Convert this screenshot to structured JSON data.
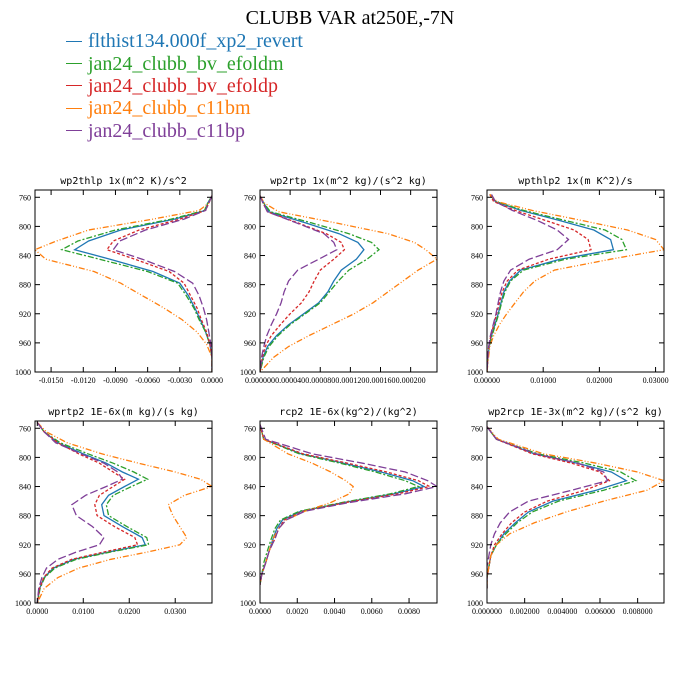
{
  "title": "CLUBB VAR at250E,-7N",
  "legend": [
    {
      "name": "flthist134.000f_xp2_revert",
      "color": "#1f77b4"
    },
    {
      "name": "jan24_clubb_bv_efoldm",
      "color": "#2ca02c"
    },
    {
      "name": "jan24_clubb_bv_efoldp",
      "color": "#d62728"
    },
    {
      "name": "jan24_clubb_c11bm",
      "color": "#ff7f0e"
    },
    {
      "name": "jan24_clubb_c11bp",
      "color": "#7f3f98"
    }
  ],
  "chart_data": [
    {
      "type": "line",
      "title": "wp2thlp  1x(m^2 K)/s^2",
      "xlim": [
        -0.0165,
        0.0
      ],
      "ylim": [
        1000,
        750
      ],
      "xticks": [
        -0.015,
        -0.012,
        -0.009,
        -0.006,
        -0.003,
        0.0
      ],
      "xticklabels": [
        "-0.0150",
        "-0.0120",
        "-0.0090",
        "-0.0060",
        "-0.0030",
        "0.0000"
      ],
      "yticks": [
        760,
        800,
        840,
        880,
        920,
        960,
        1000
      ],
      "y": [
        758,
        768,
        778,
        790,
        805,
        820,
        832,
        845,
        862,
        878,
        895,
        912,
        928,
        945,
        962,
        980,
        1000
      ],
      "series": [
        {
          "name": "flthist134.000f_xp2_revert",
          "values": [
            0.0,
            -0.0004,
            -0.0006,
            -0.0035,
            -0.0085,
            -0.0115,
            -0.0128,
            -0.0095,
            -0.0055,
            -0.003,
            -0.0022,
            -0.0016,
            -0.0011,
            -0.0006,
            -0.0002,
            0.0,
            0.0
          ]
        },
        {
          "name": "jan24_clubb_bv_efoldm",
          "values": [
            0.0,
            -0.0004,
            -0.0007,
            -0.0038,
            -0.009,
            -0.0125,
            -0.014,
            -0.0105,
            -0.006,
            -0.0032,
            -0.0024,
            -0.0017,
            -0.0012,
            -0.0006,
            -0.0002,
            0.0,
            0.0
          ]
        },
        {
          "name": "jan24_clubb_bv_efoldp",
          "values": [
            0.0,
            -0.0003,
            -0.0006,
            -0.003,
            -0.0068,
            -0.0092,
            -0.0098,
            -0.0072,
            -0.004,
            -0.0026,
            -0.002,
            -0.0014,
            -0.001,
            -0.0005,
            -0.0002,
            0.0,
            0.0
          ]
        },
        {
          "name": "jan24_clubb_c11bm",
          "values": [
            0.0,
            -0.0003,
            -0.0012,
            -0.0055,
            -0.0115,
            -0.0145,
            -0.0165,
            -0.0155,
            -0.011,
            -0.0085,
            -0.0065,
            -0.0045,
            -0.0028,
            -0.0014,
            -0.0005,
            0.0,
            0.0
          ]
        },
        {
          "name": "jan24_clubb_c11bp",
          "values": [
            0.0,
            -0.0003,
            -0.0006,
            -0.0026,
            -0.0062,
            -0.0086,
            -0.0092,
            -0.0065,
            -0.0035,
            -0.0018,
            -0.0012,
            -0.0008,
            -0.0005,
            -0.0003,
            -0.0001,
            0.0,
            0.0
          ]
        }
      ]
    },
    {
      "type": "line",
      "title": "wp2rtp  1x(m^2 kg)/(s^2 kg)",
      "xlim": [
        0.0,
        0.000235
      ],
      "ylim": [
        1000,
        750
      ],
      "xticks": [
        0.0,
        4e-05,
        8e-05,
        0.00012,
        0.00016,
        0.0002
      ],
      "xticklabels": [
        "0.000000",
        "0.000040",
        "0.000080",
        "0.000120",
        "0.000160",
        "0.000200"
      ],
      "yticks": [
        760,
        800,
        840,
        880,
        920,
        960,
        1000
      ],
      "y": [
        758,
        768,
        780,
        795,
        810,
        822,
        832,
        845,
        860,
        875,
        890,
        905,
        920,
        935,
        950,
        965,
        980,
        1000
      ],
      "series": [
        {
          "name": "flthist134.000f_xp2_revert",
          "values": [
            0.0,
            5e-06,
            1.2e-05,
            6e-05,
            0.000105,
            0.00013,
            0.000138,
            0.000128,
            0.000108,
            9.8e-05,
            9e-05,
            7.8e-05,
            5.8e-05,
            3.8e-05,
            2.2e-05,
            1e-05,
            4e-06,
            0.0
          ]
        },
        {
          "name": "jan24_clubb_bv_efoldm",
          "values": [
            0.0,
            5e-06,
            1.4e-05,
            6.8e-05,
            0.000118,
            0.000148,
            0.000158,
            0.000142,
            0.000118,
            0.000104,
            9.2e-05,
            8e-05,
            6e-05,
            4e-05,
            2.4e-05,
            1.2e-05,
            5e-06,
            0.0
          ]
        },
        {
          "name": "jan24_clubb_bv_efoldp",
          "values": [
            0.0,
            4e-06,
            1e-05,
            5e-05,
            8.8e-05,
            0.000108,
            0.000112,
            9.8e-05,
            8e-05,
            7.2e-05,
            6.5e-05,
            5.5e-05,
            4e-05,
            2.7e-05,
            1.5e-05,
            7e-06,
            3e-06,
            0.0
          ]
        },
        {
          "name": "jan24_clubb_c11bm",
          "values": [
            0.0,
            6e-06,
            2.5e-05,
            0.0001,
            0.00017,
            0.000205,
            0.00022,
            0.000235,
            0.00021,
            0.00019,
            0.00017,
            0.00015,
            0.000125,
            9.5e-05,
            6.5e-05,
            3.8e-05,
            1.8e-05,
            0.0
          ]
        },
        {
          "name": "jan24_clubb_c11bp",
          "values": [
            0.0,
            4e-06,
            1e-05,
            4.8e-05,
            8.5e-05,
            9.8e-05,
            0.000102,
            7.8e-05,
            5e-05,
            3.8e-05,
            3.2e-05,
            2.8e-05,
            2.2e-05,
            1.5e-05,
            9e-06,
            5e-06,
            2e-06,
            0.0
          ]
        }
      ]
    },
    {
      "type": "line",
      "title": "wpthlp2  1x(m K^2)/s",
      "xlim": [
        0.0,
        0.0315
      ],
      "ylim": [
        1000,
        750
      ],
      "xticks": [
        0.0,
        0.01,
        0.02,
        0.03
      ],
      "xticklabels": [
        "0.00000",
        "0.01000",
        "0.02000",
        "0.03000"
      ],
      "yticks": [
        760,
        800,
        840,
        880,
        920,
        960,
        1000
      ],
      "y": [
        756,
        766,
        778,
        792,
        805,
        818,
        832,
        845,
        860,
        875,
        890,
        905,
        920,
        935,
        950,
        965,
        985,
        1000
      ],
      "series": [
        {
          "name": "flthist134.000f_xp2_revert",
          "values": [
            0.0005,
            0.0015,
            0.006,
            0.013,
            0.019,
            0.022,
            0.0225,
            0.013,
            0.006,
            0.004,
            0.003,
            0.0025,
            0.002,
            0.0014,
            0.0008,
            0.0004,
            0.0001,
            0.0
          ]
        },
        {
          "name": "jan24_clubb_bv_efoldm",
          "values": [
            0.0005,
            0.0016,
            0.0065,
            0.014,
            0.021,
            0.024,
            0.0248,
            0.014,
            0.0065,
            0.0042,
            0.0032,
            0.0026,
            0.0021,
            0.0015,
            0.0009,
            0.0004,
            0.0001,
            0.0
          ]
        },
        {
          "name": "jan24_clubb_bv_efoldp",
          "values": [
            0.0005,
            0.0012,
            0.005,
            0.0105,
            0.0155,
            0.018,
            0.0185,
            0.011,
            0.0055,
            0.0036,
            0.0027,
            0.0022,
            0.0017,
            0.0012,
            0.0007,
            0.0003,
            0.0001,
            0.0
          ]
        },
        {
          "name": "jan24_clubb_c11bm",
          "values": [
            0.0005,
            0.0018,
            0.008,
            0.017,
            0.025,
            0.03,
            0.0315,
            0.022,
            0.012,
            0.0085,
            0.0065,
            0.005,
            0.0035,
            0.0022,
            0.0012,
            0.0005,
            0.0002,
            0.0
          ]
        },
        {
          "name": "jan24_clubb_c11bp",
          "values": [
            0.0008,
            0.0015,
            0.0045,
            0.009,
            0.0125,
            0.0145,
            0.0125,
            0.0075,
            0.0042,
            0.003,
            0.0024,
            0.002,
            0.0016,
            0.0011,
            0.0006,
            0.0003,
            0.0001,
            0.0
          ]
        }
      ]
    },
    {
      "type": "line",
      "title": "wprtp2  1E-6x(m kg)/(s kg)",
      "xlim": [
        -0.0005,
        0.038
      ],
      "ylim": [
        1000,
        750
      ],
      "xticks": [
        0.0,
        0.01,
        0.02,
        0.03
      ],
      "xticklabels": [
        "0.0000",
        "0.0100",
        "0.0200",
        "0.0300"
      ],
      "yticks": [
        760,
        800,
        840,
        880,
        920,
        960,
        1000
      ],
      "y": [
        752,
        765,
        780,
        795,
        808,
        820,
        830,
        840,
        852,
        865,
        880,
        895,
        910,
        920,
        930,
        940,
        952,
        965,
        980,
        1000
      ],
      "series": [
        {
          "name": "flthist134.000f_xp2_revert",
          "values": [
            0.0,
            0.0015,
            0.0045,
            0.01,
            0.015,
            0.0185,
            0.022,
            0.019,
            0.0155,
            0.014,
            0.0145,
            0.0185,
            0.0228,
            0.0235,
            0.0155,
            0.008,
            0.0035,
            0.0015,
            0.0005,
            0.0
          ]
        },
        {
          "name": "jan24_clubb_bv_efoldm",
          "values": [
            0.0,
            0.0015,
            0.005,
            0.011,
            0.0165,
            0.021,
            0.024,
            0.0205,
            0.0165,
            0.015,
            0.0155,
            0.0195,
            0.0238,
            0.0242,
            0.016,
            0.0085,
            0.0038,
            0.0016,
            0.0006,
            0.0
          ]
        },
        {
          "name": "jan24_clubb_bv_efoldp",
          "values": [
            0.0,
            0.0015,
            0.0045,
            0.009,
            0.0135,
            0.0165,
            0.019,
            0.0165,
            0.0135,
            0.0125,
            0.013,
            0.0168,
            0.0212,
            0.0218,
            0.0145,
            0.0075,
            0.0032,
            0.0014,
            0.0005,
            0.0
          ]
        },
        {
          "name": "jan24_clubb_c11bm",
          "values": [
            0.0,
            0.002,
            0.0065,
            0.014,
            0.022,
            0.03,
            0.0355,
            0.038,
            0.032,
            0.0285,
            0.0295,
            0.031,
            0.0325,
            0.031,
            0.024,
            0.016,
            0.009,
            0.0045,
            0.0015,
            0.0
          ]
        },
        {
          "name": "jan24_clubb_c11bp",
          "values": [
            0.0,
            0.0015,
            0.004,
            0.0095,
            0.0145,
            0.0175,
            0.0185,
            0.015,
            0.0105,
            0.0075,
            0.0085,
            0.012,
            0.0145,
            0.0135,
            0.0085,
            0.0045,
            0.002,
            0.001,
            0.0003,
            0.0
          ]
        }
      ]
    },
    {
      "type": "line",
      "title": "rcp2  1E-6x(kg^2)/(kg^2)",
      "xlim": [
        0.0,
        0.0095
      ],
      "ylim": [
        1000,
        750
      ],
      "xticks": [
        0.0,
        0.002,
        0.004,
        0.006,
        0.008
      ],
      "xticklabels": [
        "0.0000",
        "0.0020",
        "0.0040",
        "0.0060",
        "0.0080"
      ],
      "yticks": [
        760,
        800,
        840,
        880,
        920,
        960,
        1000
      ],
      "y": [
        755,
        775,
        795,
        808,
        820,
        832,
        840,
        850,
        862,
        874,
        886,
        898,
        912,
        928,
        945,
        960,
        975
      ],
      "series": [
        {
          "name": "flthist134.000f_xp2_revert",
          "values": [
            0.0,
            0.0002,
            0.0022,
            0.0045,
            0.0065,
            0.0082,
            0.0088,
            0.0072,
            0.0045,
            0.0022,
            0.0012,
            0.0009,
            0.0007,
            0.0005,
            0.0003,
            0.0001,
            0.0
          ]
        },
        {
          "name": "jan24_clubb_bv_efoldm",
          "values": [
            0.0,
            0.0002,
            0.0021,
            0.0043,
            0.0062,
            0.0078,
            0.0085,
            0.007,
            0.0044,
            0.0021,
            0.0011,
            0.0008,
            0.0006,
            0.0004,
            0.0002,
            0.0001,
            0.0
          ]
        },
        {
          "name": "jan24_clubb_bv_efoldp",
          "values": [
            0.0,
            0.0002,
            0.0023,
            0.0047,
            0.0068,
            0.0085,
            0.0091,
            0.0074,
            0.0046,
            0.0023,
            0.0013,
            0.001,
            0.0008,
            0.0005,
            0.0003,
            0.0001,
            0.0
          ]
        },
        {
          "name": "jan24_clubb_c11bm",
          "values": [
            0.0,
            0.0002,
            0.0015,
            0.0028,
            0.0038,
            0.0046,
            0.005,
            0.0048,
            0.0038,
            0.0024,
            0.0014,
            0.001,
            0.0007,
            0.0005,
            0.0003,
            0.0001,
            0.0
          ]
        },
        {
          "name": "jan24_clubb_c11bp",
          "values": [
            0.0,
            0.0003,
            0.0028,
            0.0055,
            0.0078,
            0.009,
            0.0095,
            0.0078,
            0.0048,
            0.0024,
            0.0014,
            0.001,
            0.0008,
            0.0005,
            0.0003,
            0.0001,
            0.0
          ]
        }
      ]
    },
    {
      "type": "line",
      "title": "wp2rcp  1E-3x(m^2 kg)/(s^2 kg)",
      "xlim": [
        0.0,
        0.0094
      ],
      "ylim": [
        1000,
        750
      ],
      "xticks": [
        0.0,
        0.002,
        0.004,
        0.006,
        0.008
      ],
      "xticklabels": [
        "0.000000",
        "0.002000",
        "0.004000",
        "0.006000",
        "0.008000"
      ],
      "yticks": [
        760,
        800,
        840,
        880,
        920,
        960,
        1000
      ],
      "y": [
        758,
        775,
        795,
        808,
        820,
        832,
        845,
        860,
        875,
        890,
        905,
        920,
        935,
        950,
        965,
        980
      ],
      "series": [
        {
          "name": "flthist134.000f_xp2_revert",
          "values": [
            0.0,
            0.0005,
            0.0025,
            0.0048,
            0.0066,
            0.0074,
            0.0058,
            0.0035,
            0.0022,
            0.0015,
            0.0009,
            0.0005,
            0.0002,
            0.0001,
            0.0,
            0.0
          ]
        },
        {
          "name": "jan24_clubb_bv_efoldm",
          "values": [
            0.0,
            0.0005,
            0.0027,
            0.0052,
            0.0071,
            0.0079,
            0.0062,
            0.0038,
            0.0024,
            0.0016,
            0.001,
            0.0005,
            0.0002,
            0.0001,
            0.0,
            0.0
          ]
        },
        {
          "name": "jan24_clubb_bv_efoldp",
          "values": [
            0.0,
            0.0005,
            0.0024,
            0.0045,
            0.006,
            0.0065,
            0.0052,
            0.0032,
            0.002,
            0.0013,
            0.0008,
            0.0004,
            0.0002,
            0.0001,
            0.0,
            0.0
          ]
        },
        {
          "name": "jan24_clubb_c11bm",
          "values": [
            0.0,
            0.0006,
            0.003,
            0.0058,
            0.008,
            0.0094,
            0.0085,
            0.0062,
            0.0042,
            0.0025,
            0.0012,
            0.0005,
            0.0002,
            0.0001,
            0.0,
            0.0
          ]
        },
        {
          "name": "jan24_clubb_c11bp",
          "values": [
            0.0,
            0.0005,
            0.0026,
            0.0048,
            0.0062,
            0.0064,
            0.0045,
            0.0022,
            0.0012,
            0.0007,
            0.0004,
            0.0002,
            0.0001,
            0.0,
            0.0,
            0.0
          ]
        }
      ]
    }
  ]
}
